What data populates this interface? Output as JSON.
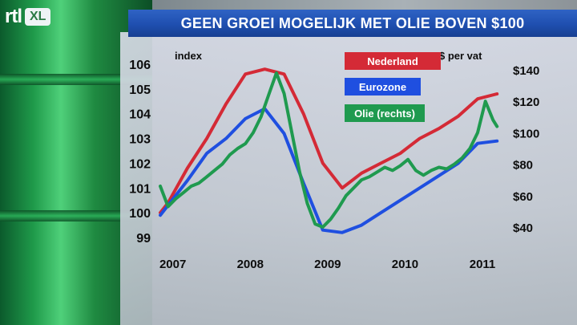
{
  "brand": {
    "rtl": "rtl",
    "xl": "XL"
  },
  "title": "GEEN GROEI MOGELIJK MET OLIE BOVEN $100",
  "colors": {
    "nederland": "#d42a36",
    "eurozone": "#1f4fe0",
    "olie": "#1f9a4f"
  },
  "chart_data": {
    "type": "line",
    "left_axis": {
      "label": "index",
      "ticks": [
        99,
        100,
        101,
        102,
        103,
        104,
        105,
        106
      ],
      "range": [
        99,
        106
      ]
    },
    "right_axis": {
      "label": "$ per vat",
      "ticks": [
        40,
        60,
        80,
        100,
        120,
        140
      ],
      "range": [
        40,
        140
      ]
    },
    "x_ticks": [
      "2007",
      "2008",
      "2009",
      "2010",
      "2011"
    ],
    "x_range": [
      2006.9,
      2011.3
    ],
    "grid": false,
    "legend": {
      "position": "top-center",
      "entries": [
        "Nederland",
        "Eurozone",
        "Olie (rechts)"
      ]
    },
    "series": [
      {
        "name": "Nederland",
        "axis": "left",
        "x": [
          2006.9,
          2007.0,
          2007.25,
          2007.5,
          2007.75,
          2008.0,
          2008.25,
          2008.5,
          2008.75,
          2009.0,
          2009.25,
          2009.5,
          2009.75,
          2010.0,
          2010.25,
          2010.5,
          2010.75,
          2011.0,
          2011.25
        ],
        "y": [
          100.0,
          100.4,
          101.8,
          103.0,
          104.4,
          105.6,
          105.8,
          105.6,
          104.0,
          102.0,
          101.0,
          101.6,
          102.0,
          102.4,
          103.0,
          103.4,
          103.9,
          104.6,
          104.8
        ]
      },
      {
        "name": "Eurozone",
        "axis": "left",
        "x": [
          2006.9,
          2007.0,
          2007.25,
          2007.5,
          2007.75,
          2008.0,
          2008.25,
          2008.5,
          2008.75,
          2009.0,
          2009.25,
          2009.5,
          2009.75,
          2010.0,
          2010.25,
          2010.5,
          2010.75,
          2011.0,
          2011.25
        ],
        "y": [
          99.9,
          100.3,
          101.3,
          102.4,
          103.0,
          103.8,
          104.2,
          103.2,
          101.2,
          99.3,
          99.2,
          99.5,
          100.0,
          100.5,
          101.0,
          101.5,
          102.0,
          102.8,
          102.9
        ]
      },
      {
        "name": "Olie (rechts)",
        "axis": "right",
        "x": [
          2006.9,
          2007.0,
          2007.1,
          2007.2,
          2007.3,
          2007.4,
          2007.5,
          2007.6,
          2007.7,
          2007.8,
          2007.9,
          2008.0,
          2008.1,
          2008.2,
          2008.3,
          2008.4,
          2008.5,
          2008.6,
          2008.7,
          2008.8,
          2008.9,
          2009.0,
          2009.1,
          2009.2,
          2009.3,
          2009.4,
          2009.5,
          2009.6,
          2009.7,
          2009.8,
          2009.9,
          2010.0,
          2010.1,
          2010.2,
          2010.3,
          2010.4,
          2010.5,
          2010.6,
          2010.7,
          2010.8,
          2010.9,
          2011.0,
          2011.1,
          2011.2,
          2011.25
        ],
        "y": [
          66,
          53,
          58,
          62,
          66,
          68,
          72,
          76,
          80,
          86,
          90,
          93,
          100,
          110,
          124,
          138,
          125,
          100,
          75,
          55,
          42,
          40,
          45,
          52,
          60,
          65,
          70,
          72,
          75,
          78,
          76,
          79,
          83,
          76,
          73,
          76,
          78,
          77,
          80,
          84,
          90,
          100,
          120,
          108,
          104
        ]
      }
    ]
  }
}
